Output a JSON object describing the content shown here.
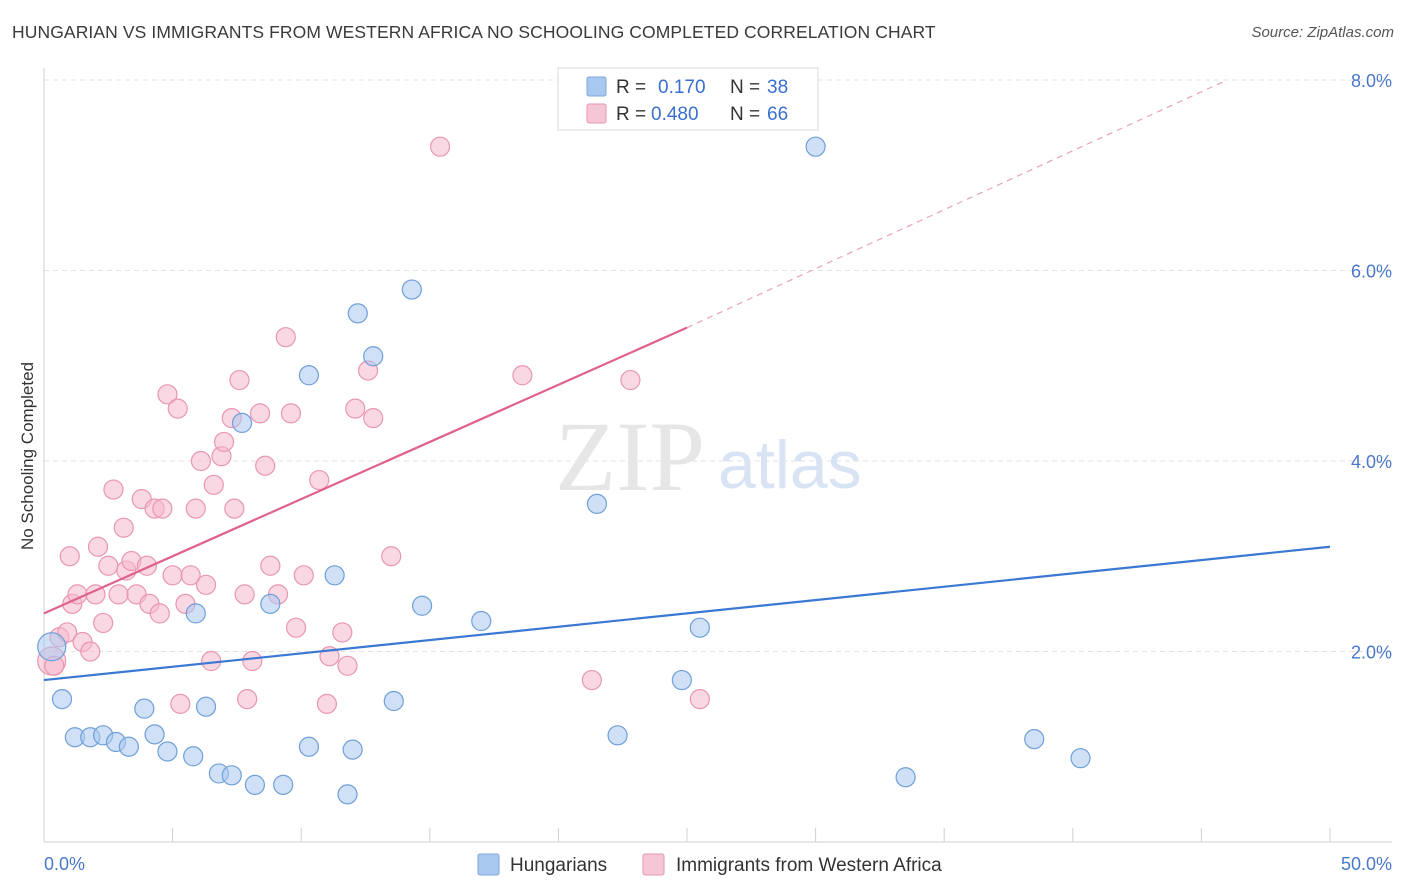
{
  "title": "HUNGARIAN VS IMMIGRANTS FROM WESTERN AFRICA NO SCHOOLING COMPLETED CORRELATION CHART",
  "source": "Source: ZipAtlas.com",
  "watermark": {
    "zip": "ZIP",
    "atlas": "atlas"
  },
  "colors": {
    "blue": "#3a78d4",
    "pink": "#e0628c",
    "blue_fill": "#a9c8f0",
    "pink_fill": "#f5b8cc"
  },
  "legend": {
    "rows": [
      {
        "r_label": "R =",
        "r_value": "0.170",
        "n_label": "N =",
        "n_value": "38",
        "series": "blue"
      },
      {
        "r_label": "R =",
        "r_value": "0.480",
        "n_label": "N =",
        "n_value": "66",
        "series": "pink"
      }
    ]
  },
  "chart_data": {
    "type": "scatter",
    "title": "HUNGARIAN VS IMMIGRANTS FROM WESTERN AFRICA NO SCHOOLING COMPLETED CORRELATION CHART",
    "xlabel": "",
    "ylabel": "No Schooling Completed",
    "xlim": [
      0,
      50
    ],
    "ylim": [
      0,
      8
    ],
    "x_tick_labels": [
      "0.0%",
      "50.0%"
    ],
    "y_ticks": [
      2,
      4,
      6,
      8
    ],
    "y_tick_labels": [
      "2.0%",
      "4.0%",
      "6.0%",
      "8.0%"
    ],
    "series": [
      {
        "name": "Hungarians",
        "color": "blue",
        "r": 0.17,
        "n": 38,
        "trend": {
          "x0": 0,
          "y0": 1.7,
          "x1": 50,
          "y1": 3.1
        },
        "points": [
          [
            0.3,
            2.05
          ],
          [
            0.7,
            1.5
          ],
          [
            1.2,
            1.1
          ],
          [
            1.8,
            1.1
          ],
          [
            2.3,
            1.12
          ],
          [
            2.8,
            1.05
          ],
          [
            3.3,
            1.0
          ],
          [
            3.9,
            1.4
          ],
          [
            4.3,
            1.13
          ],
          [
            4.8,
            0.95
          ],
          [
            5.9,
            2.4
          ],
          [
            5.8,
            0.9
          ],
          [
            6.3,
            1.42
          ],
          [
            6.8,
            0.72
          ],
          [
            7.3,
            0.7
          ],
          [
            7.7,
            4.4
          ],
          [
            8.2,
            0.6
          ],
          [
            8.8,
            2.5
          ],
          [
            9.3,
            0.6
          ],
          [
            10.3,
            1.0
          ],
          [
            10.3,
            4.9
          ],
          [
            11.3,
            2.8
          ],
          [
            11.8,
            0.5
          ],
          [
            12.0,
            0.97
          ],
          [
            12.2,
            5.55
          ],
          [
            12.8,
            5.1
          ],
          [
            13.6,
            1.48
          ],
          [
            14.3,
            5.8
          ],
          [
            14.7,
            2.48
          ],
          [
            17.0,
            2.32
          ],
          [
            21.5,
            3.55
          ],
          [
            22.3,
            1.12
          ],
          [
            24.8,
            1.7
          ],
          [
            25.5,
            2.25
          ],
          [
            30.0,
            7.3
          ],
          [
            33.5,
            0.68
          ],
          [
            38.5,
            1.08
          ],
          [
            40.3,
            0.88
          ]
        ]
      },
      {
        "name": "Immigrants from Western Africa",
        "color": "pink",
        "r": 0.48,
        "n": 66,
        "trend": {
          "x0": 0,
          "y0": 2.4,
          "x1": 25,
          "y1": 5.4
        },
        "trend_dashed": {
          "x0": 25,
          "y0": 5.4,
          "x1": 46,
          "y1": 8.0
        },
        "points": [
          [
            0.3,
            1.9
          ],
          [
            0.6,
            2.15
          ],
          [
            0.9,
            2.2
          ],
          [
            1.0,
            3.0
          ],
          [
            1.1,
            2.5
          ],
          [
            1.3,
            2.6
          ],
          [
            1.5,
            2.1
          ],
          [
            1.8,
            2.0
          ],
          [
            2.0,
            2.6
          ],
          [
            2.1,
            3.1
          ],
          [
            2.3,
            2.3
          ],
          [
            2.5,
            2.9
          ],
          [
            2.7,
            3.7
          ],
          [
            2.9,
            2.6
          ],
          [
            3.1,
            3.3
          ],
          [
            3.2,
            2.85
          ],
          [
            3.4,
            2.95
          ],
          [
            3.6,
            2.6
          ],
          [
            3.8,
            3.6
          ],
          [
            4.0,
            2.9
          ],
          [
            4.1,
            2.5
          ],
          [
            4.3,
            3.5
          ],
          [
            4.5,
            2.4
          ],
          [
            4.6,
            3.5
          ],
          [
            4.8,
            4.7
          ],
          [
            5.0,
            2.8
          ],
          [
            5.2,
            4.55
          ],
          [
            5.3,
            1.45
          ],
          [
            5.5,
            2.5
          ],
          [
            5.7,
            2.8
          ],
          [
            5.9,
            3.5
          ],
          [
            6.1,
            4.0
          ],
          [
            6.3,
            2.7
          ],
          [
            6.5,
            1.9
          ],
          [
            6.6,
            3.75
          ],
          [
            6.9,
            4.05
          ],
          [
            7.0,
            4.2
          ],
          [
            7.3,
            4.45
          ],
          [
            7.4,
            3.5
          ],
          [
            7.6,
            4.85
          ],
          [
            7.8,
            2.6
          ],
          [
            7.9,
            1.5
          ],
          [
            8.1,
            1.9
          ],
          [
            8.4,
            4.5
          ],
          [
            8.6,
            3.95
          ],
          [
            8.8,
            2.9
          ],
          [
            9.1,
            2.6
          ],
          [
            9.4,
            5.3
          ],
          [
            9.6,
            4.5
          ],
          [
            9.8,
            2.25
          ],
          [
            10.1,
            2.8
          ],
          [
            10.7,
            3.8
          ],
          [
            11.0,
            1.45
          ],
          [
            11.1,
            1.95
          ],
          [
            11.6,
            2.2
          ],
          [
            11.8,
            1.85
          ],
          [
            12.1,
            4.55
          ],
          [
            12.6,
            4.95
          ],
          [
            12.8,
            4.45
          ],
          [
            13.5,
            3.0
          ],
          [
            15.4,
            7.3
          ],
          [
            18.6,
            4.9
          ],
          [
            21.3,
            1.7
          ],
          [
            22.8,
            4.85
          ],
          [
            25.5,
            1.5
          ],
          [
            0.4,
            1.85
          ]
        ]
      }
    ],
    "legend_bottom": [
      "Hungarians",
      "Immigrants from Western Africa"
    ]
  }
}
